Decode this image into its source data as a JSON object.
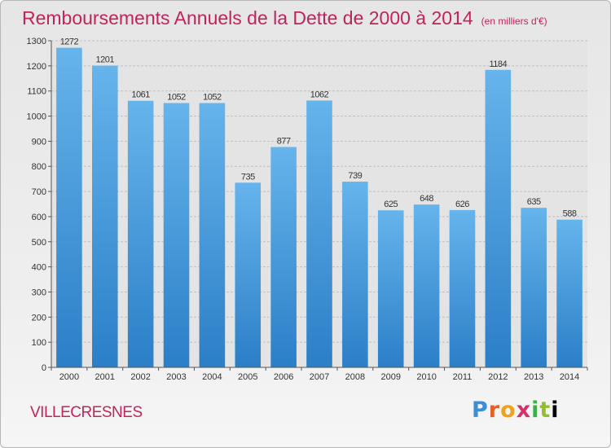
{
  "header": {
    "title": "Remboursements Annuels de la Dette de 2000 à 2014",
    "unit": "(en milliers d'€)"
  },
  "footer": {
    "city": "VILLECRESNES",
    "logo": "Proxiti"
  },
  "colors": {
    "title": "#c0245c",
    "bar_top": "#66b4ec",
    "bar_bottom": "#2b7fc7"
  },
  "chart_data": {
    "type": "bar",
    "title": "Remboursements Annuels de la Dette de 2000 à 2014",
    "xlabel": "",
    "ylabel": "",
    "categories": [
      "2000",
      "2001",
      "2002",
      "2003",
      "2004",
      "2005",
      "2006",
      "2007",
      "2008",
      "2009",
      "2010",
      "2011",
      "2012",
      "2013",
      "2014"
    ],
    "values": [
      1272,
      1201,
      1061,
      1052,
      1052,
      735,
      877,
      1062,
      739,
      625,
      648,
      626,
      1184,
      635,
      588
    ],
    "ylim": [
      0,
      1300
    ],
    "yticks": [
      0,
      100,
      200,
      300,
      400,
      500,
      600,
      700,
      800,
      900,
      1000,
      1100,
      1200,
      1300
    ],
    "grid": true,
    "legend": "none"
  }
}
